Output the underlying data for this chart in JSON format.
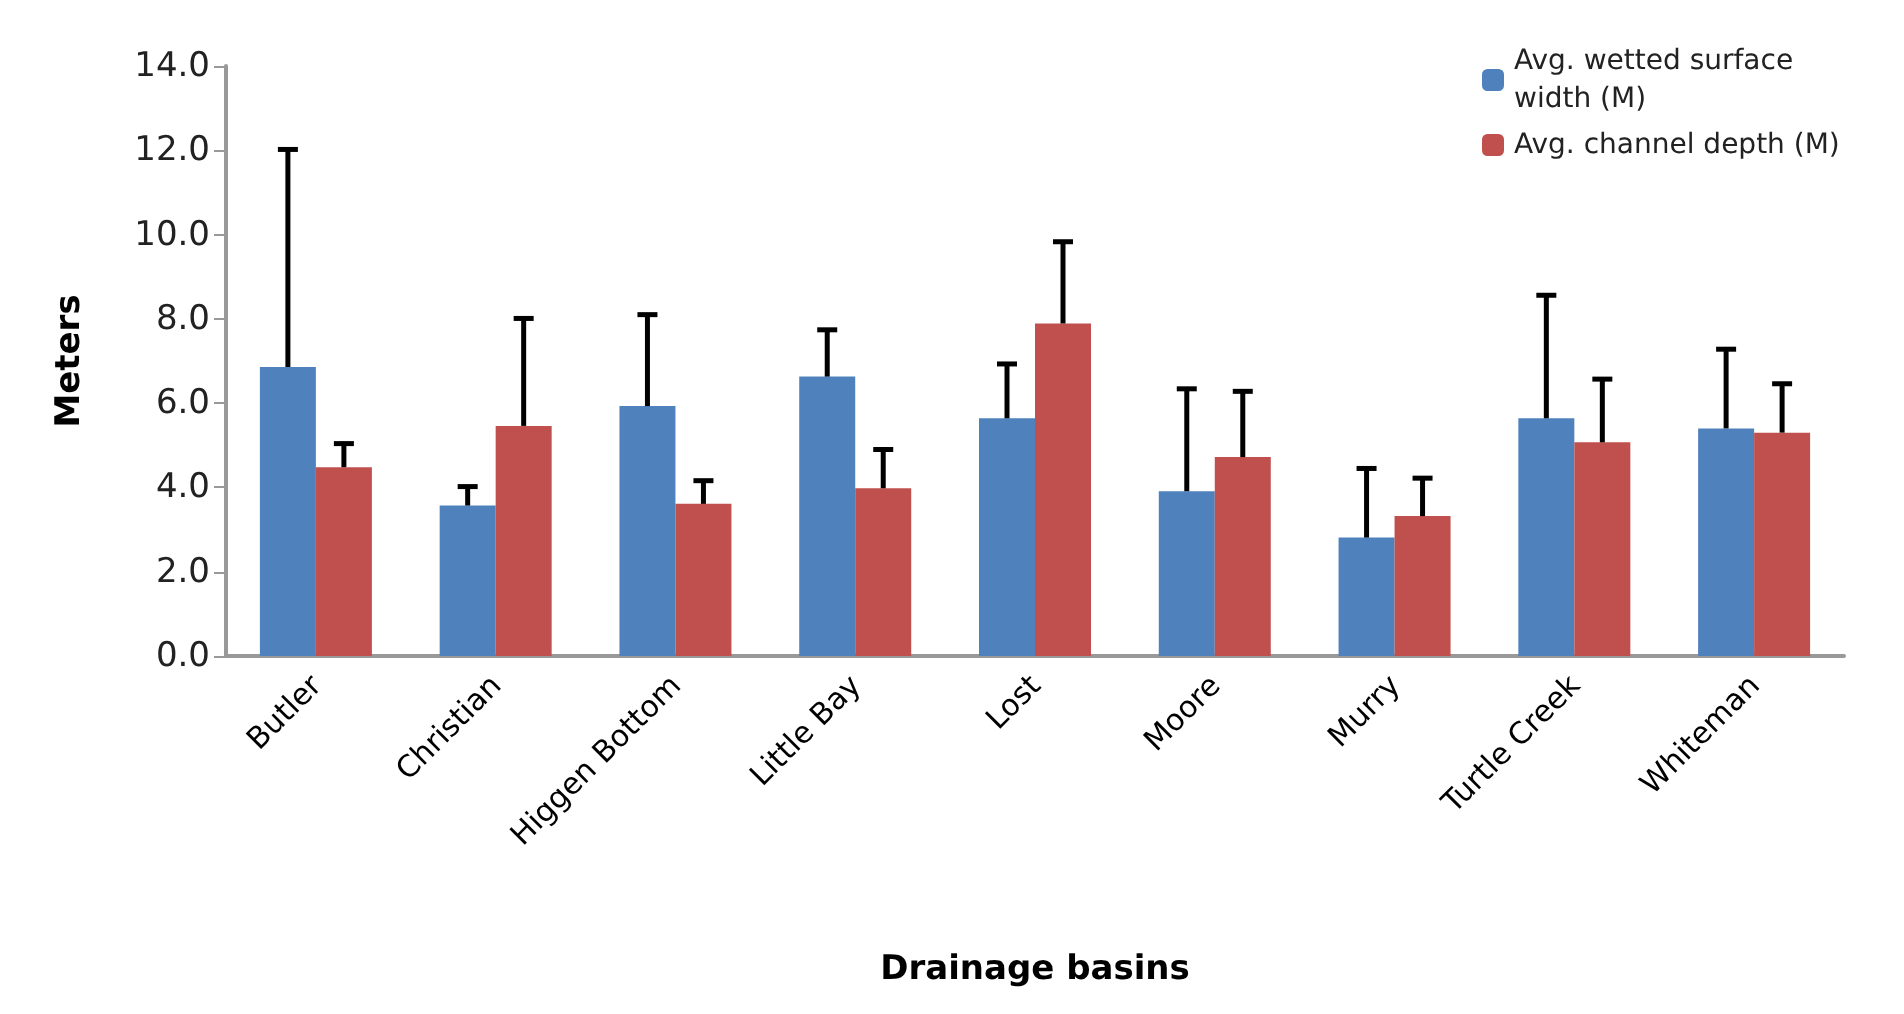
{
  "chart_data": {
    "type": "bar",
    "xlabel": "Drainage basins",
    "ylabel": "Meters",
    "categories": [
      "Butler",
      "Christian",
      "Higgen Bottom",
      "Little Bay",
      "Lost",
      "Moore",
      "Murry",
      "Turtle Creek",
      "Whiteman"
    ],
    "series": [
      {
        "name": "Avg. wetted surface width (M)",
        "color": "#4f81bd",
        "values": [
          6.86,
          3.57,
          5.93,
          6.63,
          5.64,
          3.91,
          2.81,
          5.64,
          5.4
        ],
        "errors": [
          [
            6.86,
            12.02
          ],
          [
            3.57,
            4.02
          ],
          [
            5.93,
            8.1
          ],
          [
            6.63,
            7.74
          ],
          [
            5.64,
            6.93
          ],
          [
            3.91,
            6.34
          ],
          [
            2.81,
            4.45
          ],
          [
            5.64,
            8.56
          ],
          [
            5.4,
            7.28
          ]
        ]
      },
      {
        "name": "Avg. channel depth (M)",
        "color": "#c0504d",
        "values": [
          4.48,
          5.46,
          3.61,
          3.98,
          7.89,
          4.72,
          3.32,
          5.07,
          5.3
        ],
        "errors": [
          [
            4.48,
            5.04
          ],
          [
            5.46,
            8.01
          ],
          [
            3.61,
            4.16
          ],
          [
            3.98,
            4.9
          ],
          [
            7.89,
            9.83
          ],
          [
            4.72,
            6.28
          ],
          [
            3.32,
            4.22
          ],
          [
            5.07,
            6.57
          ],
          [
            5.3,
            6.46
          ]
        ]
      }
    ],
    "ylim": [
      0,
      14
    ],
    "yticks": [
      {
        "value": 0,
        "label": "0.0"
      },
      {
        "value": 2,
        "label": "2.0"
      },
      {
        "value": 4,
        "label": "4.0"
      },
      {
        "value": 6,
        "label": "6.0"
      },
      {
        "value": 8,
        "label": "8.0"
      },
      {
        "value": 10,
        "label": "10.0"
      },
      {
        "value": 12,
        "label": "12.0"
      },
      {
        "value": 14,
        "label": "14.0"
      }
    ],
    "grid": false,
    "legend": "top right"
  }
}
